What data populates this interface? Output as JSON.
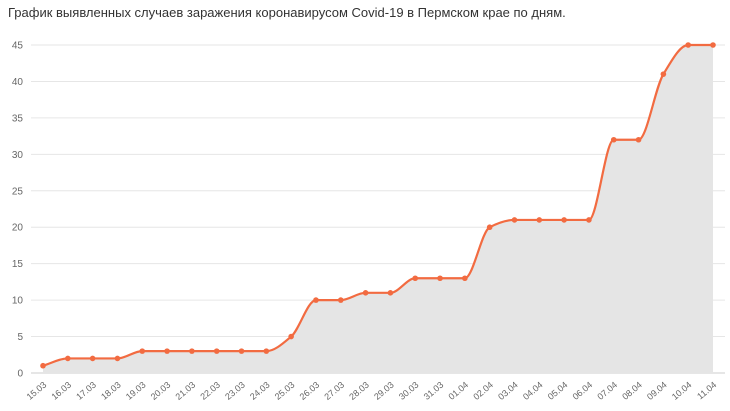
{
  "chart_data": {
    "type": "area",
    "title": "График выявленных случаев заражения коронавирусом Covid-19 в Пермском крае по дням.",
    "xlabel": "",
    "ylabel": "",
    "categories": [
      "15.03",
      "16.03",
      "17.03",
      "18.03",
      "19.03",
      "20.03",
      "21.03",
      "22.03",
      "23.03",
      "24.03",
      "25.03",
      "26.03",
      "27.03",
      "28.03",
      "29.03",
      "30.03",
      "31.03",
      "01.04",
      "02.04",
      "03.04",
      "04.04",
      "05.04",
      "06.04",
      "07.04",
      "08.04",
      "09.04",
      "10.04",
      "11.04"
    ],
    "series": [
      {
        "values": [
          1,
          2,
          2,
          2,
          3,
          3,
          3,
          3,
          3,
          3,
          5,
          10,
          10,
          11,
          11,
          13,
          13,
          13,
          20,
          21,
          21,
          21,
          21,
          32,
          32,
          41,
          45,
          45
        ]
      }
    ],
    "ylim": [
      0,
      45
    ],
    "yticks": [
      "0",
      "5",
      "10",
      "15",
      "20",
      "25",
      "30",
      "35",
      "40",
      "45"
    ],
    "grid": true,
    "line_color": "#f26b41",
    "fill_color": "#e5e5e5"
  }
}
